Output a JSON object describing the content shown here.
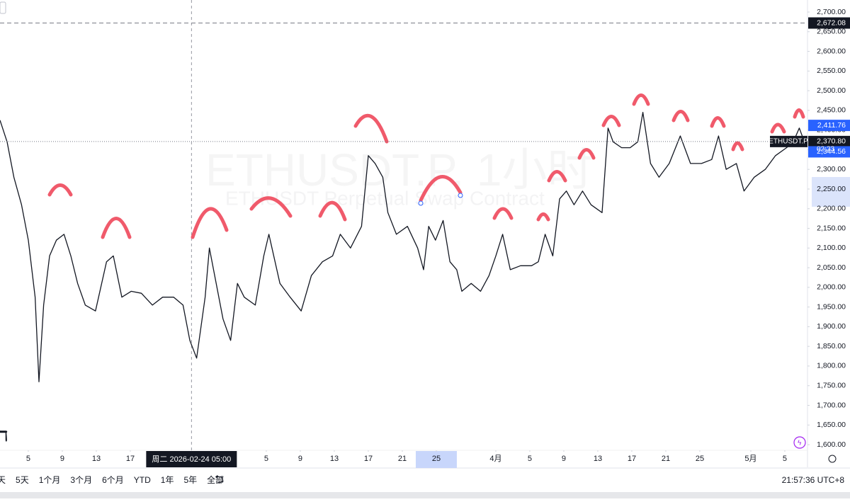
{
  "chart_data": {
    "type": "line",
    "title": "ETHUSDT.P, 1小时",
    "subtitle": "ETHUSDT Perpetual Swap Contract",
    "x": [
      0.67,
      1.5,
      2.3,
      3.2,
      4,
      4.8,
      5.25,
      5.8,
      6.5,
      7.3,
      8.2,
      9,
      9.8,
      10.7,
      11.9,
      13.2,
      14,
      15,
      16.1,
      17.3,
      18.6,
      19.8,
      21.1,
      22.2,
      23,
      23.8,
      24.8,
      25.3,
      26.1,
      26.9,
      27.8,
      28.6,
      29.4,
      30.7,
      31.7,
      32.3,
      33.6,
      34.8,
      36.1,
      37.3,
      38.6,
      39.8,
      40.7,
      41.9,
      43.2,
      44,
      44.8,
      45.7,
      46.3,
      47.3,
      48.6,
      49.8,
      50.5,
      51.1,
      51.9,
      52.8,
      53.6,
      54.4,
      55,
      56.1,
      57.2,
      58.2,
      59,
      59.8,
      60.7,
      61.9,
      63.2,
      64,
      64.8,
      65.7,
      66.5,
      67.3,
      68.2,
      69.2,
      70.2,
      71.5,
      72.2,
      72.8,
      73.8,
      74.8,
      75.7,
      76.3,
      77.2,
      78.2,
      79.4,
      80.7,
      81.9,
      83.2,
      84.4,
      85.2,
      86.1,
      87.3,
      88.2,
      89.4,
      90.7,
      91.9,
      93.2,
      94,
      94.7,
      95.3
    ],
    "series": [
      {
        "name": "ETHUSDT.P",
        "color": "#131722",
        "values": [
          2425,
          2370,
          2280,
          2210,
          2120,
          1975,
          1760,
          1955,
          2080,
          2120,
          2135,
          2080,
          2010,
          1955,
          1940,
          2065,
          2080,
          1975,
          1990,
          1985,
          1955,
          1975,
          1975,
          1955,
          1865,
          1820,
          1975,
          2100,
          2010,
          1920,
          1865,
          2010,
          1975,
          1955,
          2080,
          2135,
          2010,
          1975,
          1940,
          2030,
          2065,
          2080,
          2135,
          2100,
          2155,
          2335,
          2315,
          2280,
          2190,
          2135,
          2155,
          2100,
          2045,
          2155,
          2120,
          2170,
          2065,
          2045,
          1990,
          2010,
          1990,
          2030,
          2080,
          2135,
          2045,
          2055,
          2055,
          2065,
          2135,
          2080,
          2225,
          2245,
          2210,
          2245,
          2210,
          2190,
          2405,
          2370,
          2355,
          2355,
          2370,
          2445,
          2315,
          2280,
          2315,
          2385,
          2315,
          2315,
          2325,
          2385,
          2300,
          2315,
          2245,
          2280,
          2300,
          2335,
          2355,
          2370,
          2405,
          2370
        ]
      }
    ],
    "xlim": [
      0.67,
      95.67
    ],
    "xticks": [
      {
        "value": 4,
        "label": "5"
      },
      {
        "value": 8,
        "label": "9"
      },
      {
        "value": 12,
        "label": "13"
      },
      {
        "value": 16,
        "label": "17"
      },
      {
        "value": 32,
        "label": "5"
      },
      {
        "value": 36,
        "label": "9"
      },
      {
        "value": 40,
        "label": "13"
      },
      {
        "value": 44,
        "label": "17"
      },
      {
        "value": 48,
        "label": "21"
      },
      {
        "value": 52,
        "label": "25"
      },
      {
        "value": 59,
        "label": "4月"
      },
      {
        "value": 63,
        "label": "5"
      },
      {
        "value": 67,
        "label": "9"
      },
      {
        "value": 71,
        "label": "13"
      },
      {
        "value": 75,
        "label": "17"
      },
      {
        "value": 79,
        "label": "21"
      },
      {
        "value": 83,
        "label": "25"
      },
      {
        "value": 89,
        "label": "5月"
      },
      {
        "value": 93,
        "label": "5"
      }
    ],
    "highlight_xtick": 9,
    "crosshair": {
      "value": 23.2,
      "label": "周二 2026-02-24 05:00"
    },
    "ylim": [
      1585.7,
      2730.6
    ],
    "yticks": [
      {
        "value": 1600,
        "label": "1,600.00"
      },
      {
        "value": 1650,
        "label": "1,650.00"
      },
      {
        "value": 1700,
        "label": "1,700.00"
      },
      {
        "value": 1750,
        "label": "1,750.00"
      },
      {
        "value": 1800,
        "label": "1,800.00"
      },
      {
        "value": 1850,
        "label": "1,850.00"
      },
      {
        "value": 1900,
        "label": "1,900.00"
      },
      {
        "value": 1950,
        "label": "1,950.00"
      },
      {
        "value": 2000,
        "label": "2,000.00"
      },
      {
        "value": 2050,
        "label": "2,050.00"
      },
      {
        "value": 2100,
        "label": "2,100.00"
      },
      {
        "value": 2150,
        "label": "2,150.00"
      },
      {
        "value": 2200,
        "label": "2,200.00"
      },
      {
        "value": 2250,
        "label": "2,250.00"
      },
      {
        "value": 2300,
        "label": "2,300.00"
      },
      {
        "value": 2350,
        "label": "2,350.00"
      },
      {
        "value": 2400,
        "label": "2,400.00"
      },
      {
        "value": 2450,
        "label": "2,450.00"
      },
      {
        "value": 2500,
        "label": "2,500.00"
      },
      {
        "value": 2550,
        "label": "2,550.00"
      },
      {
        "value": 2600,
        "label": "2,600.00"
      },
      {
        "value": 2650,
        "label": "2,650.00"
      },
      {
        "value": 2700,
        "label": "2,700.00"
      }
    ],
    "grid": false,
    "price_labels": [
      {
        "value": 2672.08,
        "label": "2,672.08",
        "color": "#131722",
        "line": "dashed"
      },
      {
        "value": 2411.76,
        "label": "2,411.76",
        "color": "#2962ff"
      },
      {
        "value": 2370.8,
        "label": "2,370.80",
        "color": "#131722",
        "line": "dotted"
      },
      {
        "value": 2344.56,
        "label": "2,344.56",
        "color": "#2962ff"
      }
    ],
    "countdown": "02:23"
  },
  "toolbar": {
    "ranges": [
      "天",
      "5天",
      "1个月",
      "3个月",
      "6个月",
      "YTD",
      "1年",
      "5年",
      "全部"
    ],
    "clock": "21:57:36 UTC+8"
  }
}
